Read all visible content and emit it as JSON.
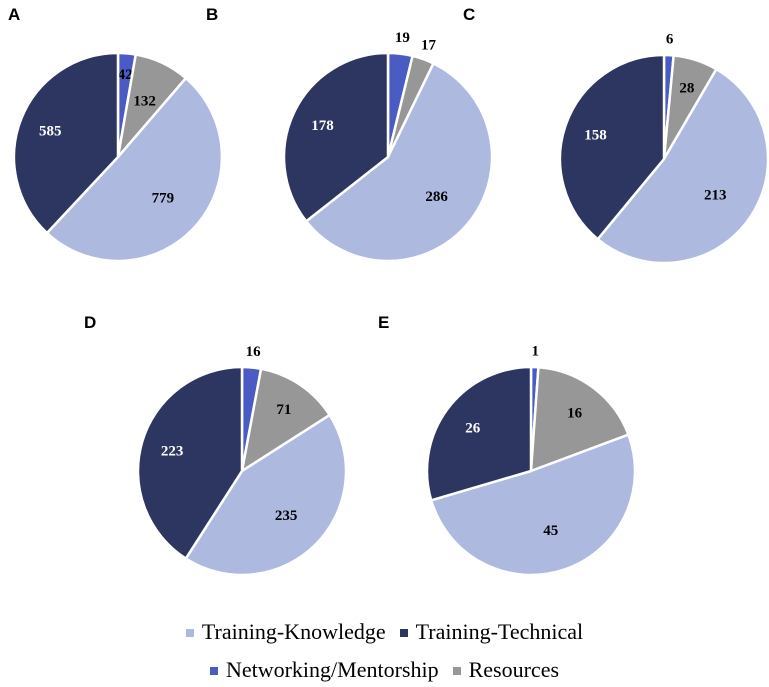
{
  "chart_data": [
    {
      "type": "pie",
      "panel": "A",
      "categories": [
        "Networking/Mentorship",
        "Resources",
        "Training-Knowledge",
        "Training-Technical"
      ],
      "values": [
        42,
        132,
        779,
        585
      ]
    },
    {
      "type": "pie",
      "panel": "B",
      "categories": [
        "Networking/Mentorship",
        "Resources",
        "Training-Knowledge",
        "Training-Technical"
      ],
      "values": [
        19,
        17,
        286,
        178
      ]
    },
    {
      "type": "pie",
      "panel": "C",
      "categories": [
        "Networking/Mentorship",
        "Resources",
        "Training-Knowledge",
        "Training-Technical"
      ],
      "values": [
        6,
        28,
        213,
        158
      ]
    },
    {
      "type": "pie",
      "panel": "D",
      "categories": [
        "Networking/Mentorship",
        "Resources",
        "Training-Knowledge",
        "Training-Technical"
      ],
      "values": [
        16,
        71,
        235,
        223
      ]
    },
    {
      "type": "pie",
      "panel": "E",
      "categories": [
        "Networking/Mentorship",
        "Resources",
        "Training-Knowledge",
        "Training-Technical"
      ],
      "values": [
        1,
        16,
        45,
        26
      ]
    }
  ],
  "colors": {
    "Networking/Mentorship": "#4a5bc4",
    "Resources": "#979797",
    "Training-Knowledge": "#aeb9e0",
    "Training-Technical": "#2d3561"
  },
  "label_colors": {
    "Networking/Mentorship": "#000000",
    "Resources": "#000000",
    "Training-Knowledge": "#000000",
    "Training-Technical": "#ffffff"
  },
  "legend": {
    "position": "bottom",
    "row1": [
      {
        "key": "Training-Knowledge",
        "label": "Training-Knowledge"
      },
      {
        "key": "Training-Technical",
        "label": "Training-Technical"
      }
    ],
    "row2": [
      {
        "key": "Networking/Mentorship",
        "label": "Networking/Mentorship"
      },
      {
        "key": "Resources",
        "label": "Resources"
      }
    ]
  }
}
